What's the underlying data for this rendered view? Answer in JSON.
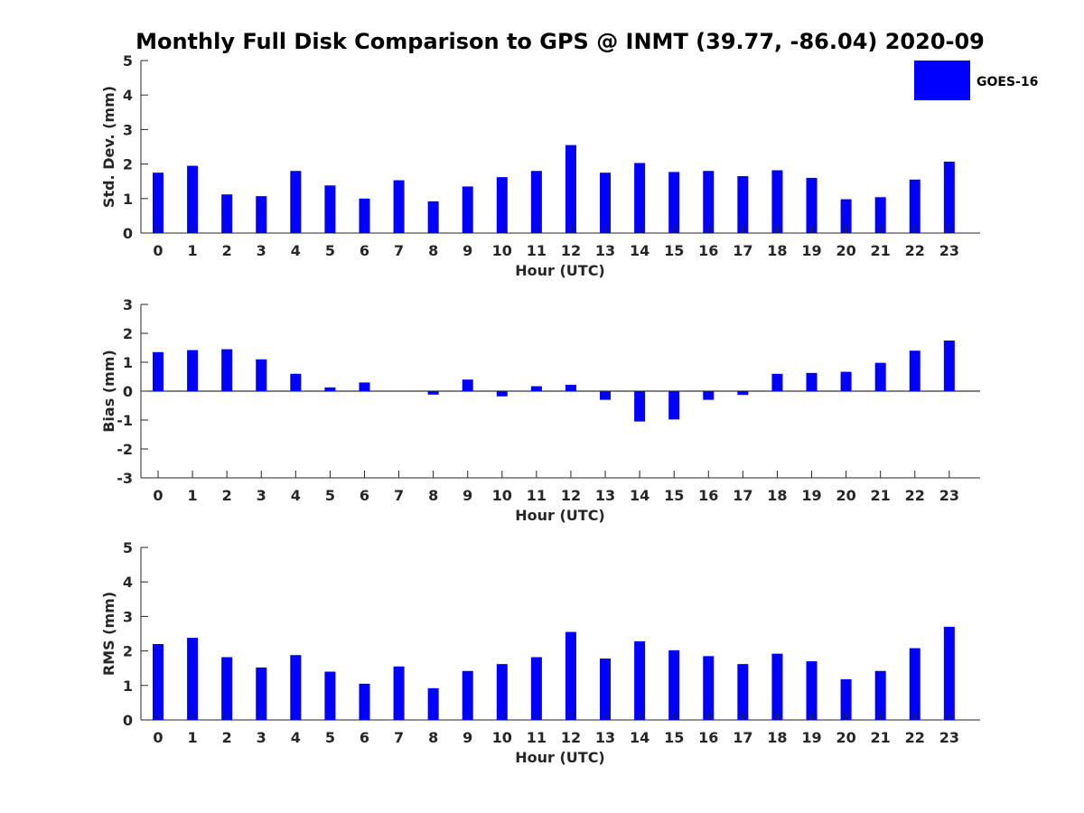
{
  "title": "Monthly Full Disk Comparison to GPS @ INMT (39.77, -86.04) 2020-09",
  "legend": {
    "label": "GOES-16",
    "color": "#0000ff"
  },
  "chart_data": [
    {
      "type": "bar",
      "name": "std",
      "xlabel": "Hour (UTC)",
      "ylabel": "Std. Dev. (mm)",
      "ylim": [
        0,
        5
      ],
      "yticks": [
        0,
        1,
        2,
        3,
        4,
        5
      ],
      "categories": [
        "0",
        "1",
        "2",
        "3",
        "4",
        "5",
        "6",
        "7",
        "8",
        "9",
        "10",
        "11",
        "12",
        "13",
        "14",
        "15",
        "16",
        "17",
        "18",
        "19",
        "20",
        "21",
        "22",
        "23"
      ],
      "series": [
        {
          "name": "GOES-16",
          "values": [
            1.75,
            1.95,
            1.12,
            1.07,
            1.8,
            1.38,
            1.0,
            1.53,
            0.92,
            1.35,
            1.62,
            1.8,
            2.55,
            1.75,
            2.03,
            1.77,
            1.8,
            1.65,
            1.82,
            1.6,
            0.98,
            1.04,
            1.55,
            2.07
          ]
        }
      ],
      "color": "#0000ff"
    },
    {
      "type": "bar",
      "name": "bias",
      "xlabel": "Hour (UTC)",
      "ylabel": "Bias (mm)",
      "ylim": [
        -3,
        3
      ],
      "yticks": [
        -3,
        -2,
        -1,
        0,
        1,
        2,
        3
      ],
      "categories": [
        "0",
        "1",
        "2",
        "3",
        "4",
        "5",
        "6",
        "7",
        "8",
        "9",
        "10",
        "11",
        "12",
        "13",
        "14",
        "15",
        "16",
        "17",
        "18",
        "19",
        "20",
        "21",
        "22",
        "23"
      ],
      "series": [
        {
          "name": "GOES-16",
          "values": [
            1.35,
            1.42,
            1.45,
            1.1,
            0.6,
            0.13,
            0.3,
            0,
            -0.12,
            0.4,
            -0.18,
            0.17,
            0.22,
            -0.3,
            -1.05,
            -0.98,
            -0.3,
            -0.13,
            0.6,
            0.63,
            0.67,
            0.98,
            1.4,
            1.75
          ]
        }
      ],
      "color": "#0000ff"
    },
    {
      "type": "bar",
      "name": "rms",
      "xlabel": "Hour (UTC)",
      "ylabel": "RMS (mm)",
      "ylim": [
        0,
        5
      ],
      "yticks": [
        0,
        1,
        2,
        3,
        4,
        5
      ],
      "categories": [
        "0",
        "1",
        "2",
        "3",
        "4",
        "5",
        "6",
        "7",
        "8",
        "9",
        "10",
        "11",
        "12",
        "13",
        "14",
        "15",
        "16",
        "17",
        "18",
        "19",
        "20",
        "21",
        "22",
        "23"
      ],
      "series": [
        {
          "name": "GOES-16",
          "values": [
            2.2,
            2.38,
            1.82,
            1.52,
            1.88,
            1.4,
            1.05,
            1.55,
            0.92,
            1.42,
            1.62,
            1.82,
            2.55,
            1.78,
            2.28,
            2.02,
            1.85,
            1.62,
            1.92,
            1.7,
            1.18,
            1.42,
            2.08,
            2.7
          ]
        }
      ],
      "color": "#0000ff"
    }
  ]
}
